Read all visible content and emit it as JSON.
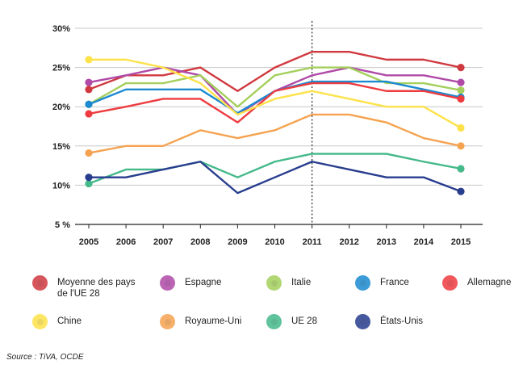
{
  "chart_data": {
    "type": "line",
    "x": [
      "2005",
      "2006",
      "2007",
      "2008",
      "2009",
      "2010",
      "2011",
      "2012",
      "2013",
      "2014",
      "2015"
    ],
    "ylim": [
      5,
      30
    ],
    "y_ticks": [
      "30%",
      "25%",
      "20%",
      "15%",
      "10%",
      "5 %"
    ],
    "y_tick_values": [
      30,
      25,
      20,
      15,
      10,
      5
    ],
    "grid": true,
    "reference_line_x": "2011",
    "series": [
      {
        "name": "Moyenne des pays\nde l'UE 28",
        "color": "#d0393f",
        "values": [
          22.2,
          24,
          24,
          25,
          22,
          25,
          27,
          27,
          26,
          26,
          25
        ]
      },
      {
        "name": "Espagne",
        "color": "#b04aa8",
        "values": [
          23.1,
          24,
          25,
          24,
          19,
          22,
          24,
          25,
          24,
          24,
          23.1
        ]
      },
      {
        "name": "Italie",
        "color": "#a4cf5c",
        "values": [
          20.3,
          23,
          23,
          24,
          20,
          24,
          25,
          25,
          23,
          23,
          22.1
        ]
      },
      {
        "name": "France",
        "color": "#1b8ad0",
        "values": [
          20.3,
          22.2,
          22.2,
          22.2,
          19.2,
          22,
          23.2,
          23.2,
          23.2,
          22.2,
          21.2
        ]
      },
      {
        "name": "Allemagne",
        "color": "#ee3b3f",
        "values": [
          19.1,
          20,
          21,
          21,
          18,
          22,
          23,
          23,
          22,
          22,
          21
        ]
      },
      {
        "name": "Chine",
        "color": "#fde24a",
        "values": [
          26,
          26,
          25,
          23,
          19,
          21,
          22,
          21,
          20,
          20,
          17.3
        ]
      },
      {
        "name": "Royaume-Uni",
        "color": "#f5a350",
        "values": [
          14.1,
          15,
          15,
          17,
          16,
          17,
          19,
          19,
          18,
          16,
          15
        ]
      },
      {
        "name": "UE 28",
        "color": "#44b98a",
        "values": [
          10.2,
          12,
          12,
          13,
          11,
          13,
          14,
          14,
          14,
          13,
          12.1
        ]
      },
      {
        "name": "États-Unis",
        "color": "#283d8e",
        "values": [
          11,
          11,
          12,
          13,
          9,
          11,
          13,
          12,
          11,
          11,
          9.2
        ]
      }
    ],
    "source": "Source : TiVA, OCDE"
  }
}
